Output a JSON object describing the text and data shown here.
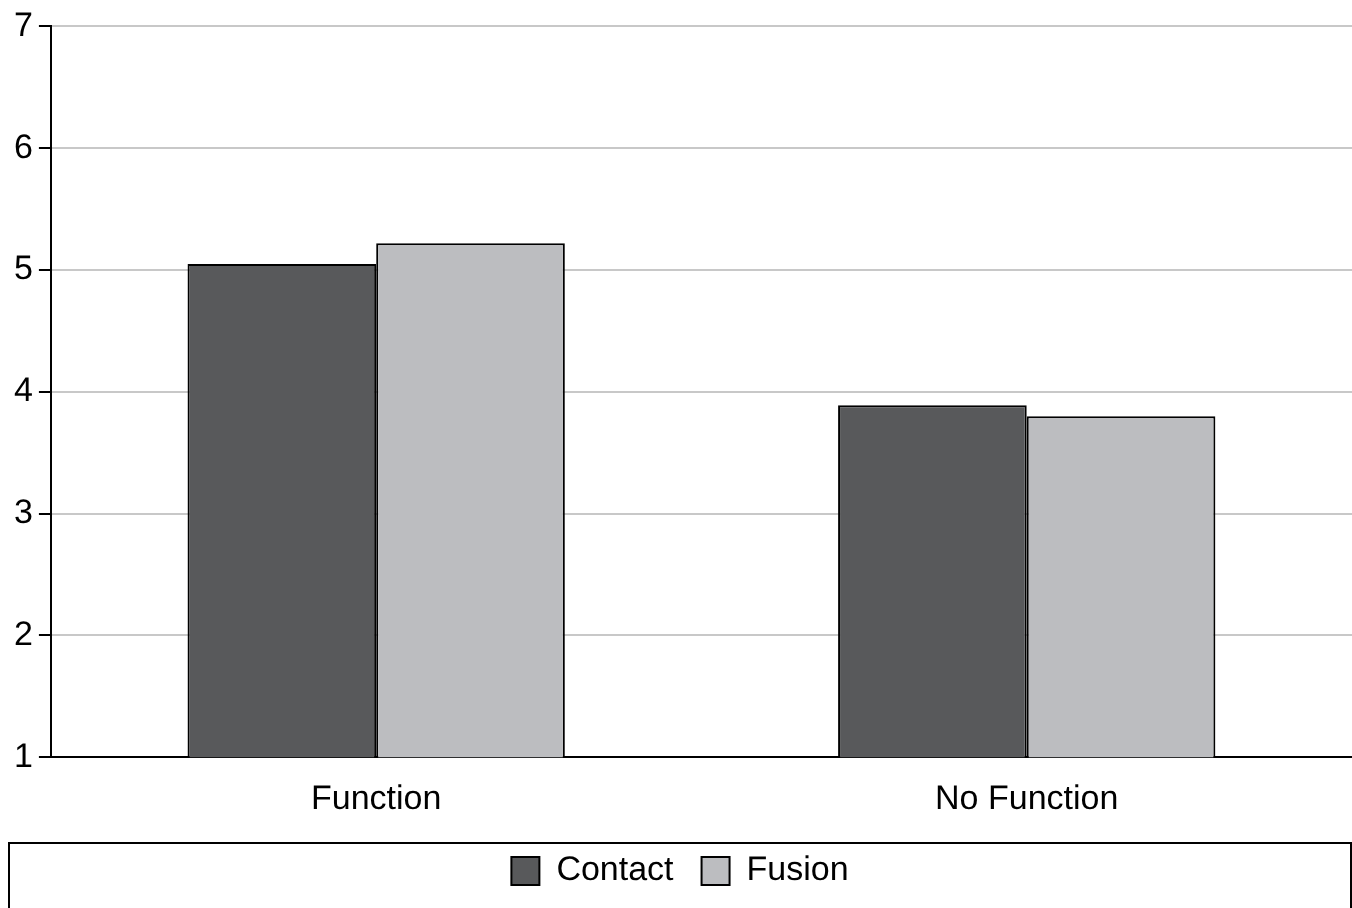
{
  "chart_data": {
    "type": "bar",
    "categories": [
      "Function",
      "No Function"
    ],
    "series": [
      {
        "name": "Contact",
        "color": "#58595b",
        "values": [
          5.05,
          3.89
        ]
      },
      {
        "name": "Fusion",
        "color": "#bcbdc0",
        "values": [
          5.22,
          3.8
        ]
      }
    ],
    "ylim": [
      1,
      7
    ],
    "yticks": [
      1,
      2,
      3,
      4,
      5,
      6,
      7
    ],
    "grid": "y",
    "legend": "bottom"
  }
}
